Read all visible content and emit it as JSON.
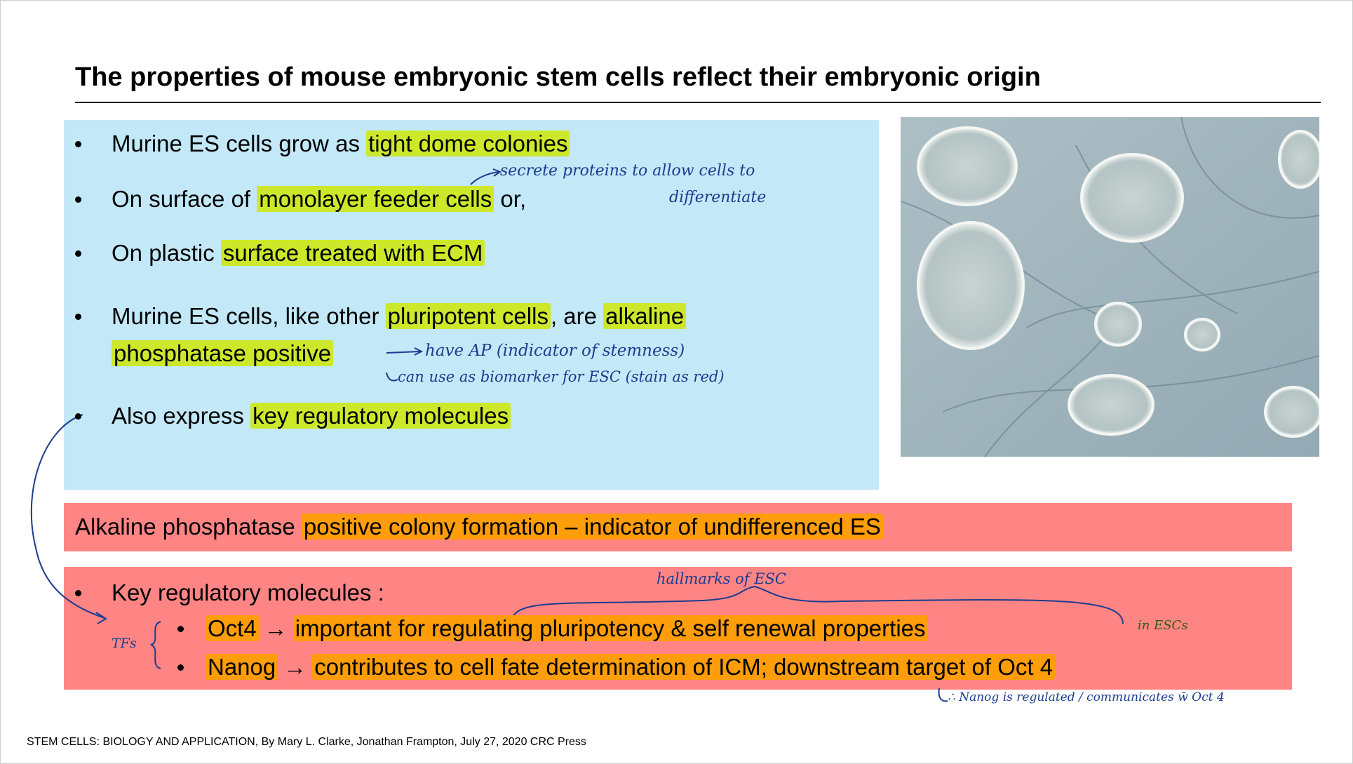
{
  "title": "The properties of mouse embryonic stem cells reflect their embryonic origin",
  "bullets": [
    [
      [
        {
          "text": "Murine ES cells grow as "
        },
        {
          "text": "tight dome colonies",
          "highlight": "#cde82a"
        }
      ]
    ],
    [
      [
        {
          "text": "On surface of "
        },
        {
          "text": "monolayer feeder cells",
          "highlight": "#cde82a"
        },
        {
          "text": " or,"
        }
      ]
    ],
    [
      [
        {
          "text": "On plastic "
        },
        {
          "text": "surface treated with ECM",
          "highlight": "#cde82a"
        }
      ]
    ],
    [
      [
        {
          "text": "Murine ES cells, like other "
        },
        {
          "text": "pluripotent cells",
          "highlight": "#cde82a"
        },
        {
          "text": ", are "
        },
        {
          "text": "alkaline",
          "highlight": "#cde82a"
        }
      ],
      [
        {
          "text": "phosphatase positive",
          "highlight": "#cde82a"
        }
      ]
    ],
    [
      [
        {
          "text": "Also express "
        },
        {
          "text": "key regulatory molecules",
          "highlight": "#cde82a"
        }
      ]
    ]
  ],
  "banner": [
    {
      "text": "Alkaline phosphatase "
    },
    {
      "text": "positive colony formation – indicator of undifferenced ES",
      "highlight": "#ff9d0a"
    }
  ],
  "key_box": {
    "heading": "Key regulatory molecules :",
    "items": [
      {
        "name": "Oct4",
        "arrow": "→",
        "description": "important for regulating pluripotency & self renewal properties",
        "highlight": "#ff9d0a"
      },
      {
        "name": "Nanog",
        "arrow": "→",
        "description": "contributes to cell fate determination of ICM; downstream target of Oct 4",
        "highlight": "#ff9d0a"
      }
    ]
  },
  "annotations": {
    "feeder_note": [
      "secrete proteins to allow cells to",
      "differentiate"
    ],
    "ap_note": "have AP (indicator of stemness)",
    "biomarker_note": "can use as biomarker for ESC (stain as red)",
    "hallmarks_note": "hallmarks of ESC",
    "in_escs_note": "in ESCs",
    "tfs_note": "TFs",
    "nanog_note": "∴ Nanog is regulated / communicates w̄ Oct 4"
  },
  "footer": "STEM CELLS: BIOLOGY AND APPLICATION, By Mary L. Clarke, Jonathan Frampton, July 27, 2020 CRC Press"
}
